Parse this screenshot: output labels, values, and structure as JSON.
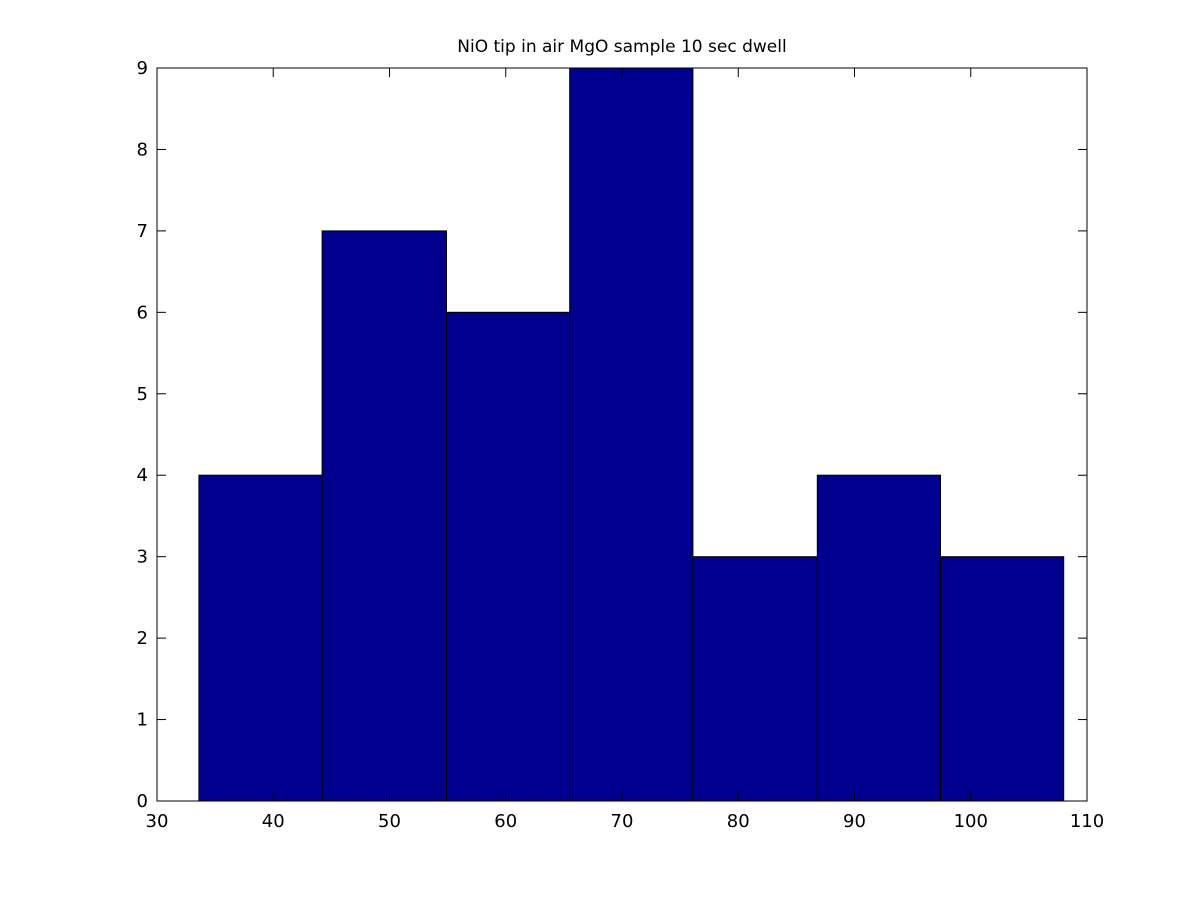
{
  "chart_data": {
    "type": "bar",
    "title": "NiO tip in air MgO sample 10 sec dwell",
    "xlabel": "",
    "ylabel": "",
    "xlim": [
      30,
      110
    ],
    "ylim": [
      0,
      9
    ],
    "xticks": [
      30,
      40,
      50,
      60,
      70,
      80,
      90,
      100,
      110
    ],
    "yticks": [
      0,
      1,
      2,
      3,
      4,
      5,
      6,
      7,
      8,
      9
    ],
    "bins": [
      {
        "start": 33.6,
        "end": 44.2,
        "value": 4
      },
      {
        "start": 44.2,
        "end": 54.9,
        "value": 7
      },
      {
        "start": 54.9,
        "end": 65.5,
        "value": 6
      },
      {
        "start": 65.5,
        "end": 76.1,
        "value": 9
      },
      {
        "start": 76.1,
        "end": 86.8,
        "value": 3
      },
      {
        "start": 86.8,
        "end": 97.4,
        "value": 4
      },
      {
        "start": 97.4,
        "end": 108.0,
        "value": 3
      }
    ],
    "bar_color": "#00008f",
    "edge_color": "#000000",
    "grid": false,
    "legend": "none"
  }
}
